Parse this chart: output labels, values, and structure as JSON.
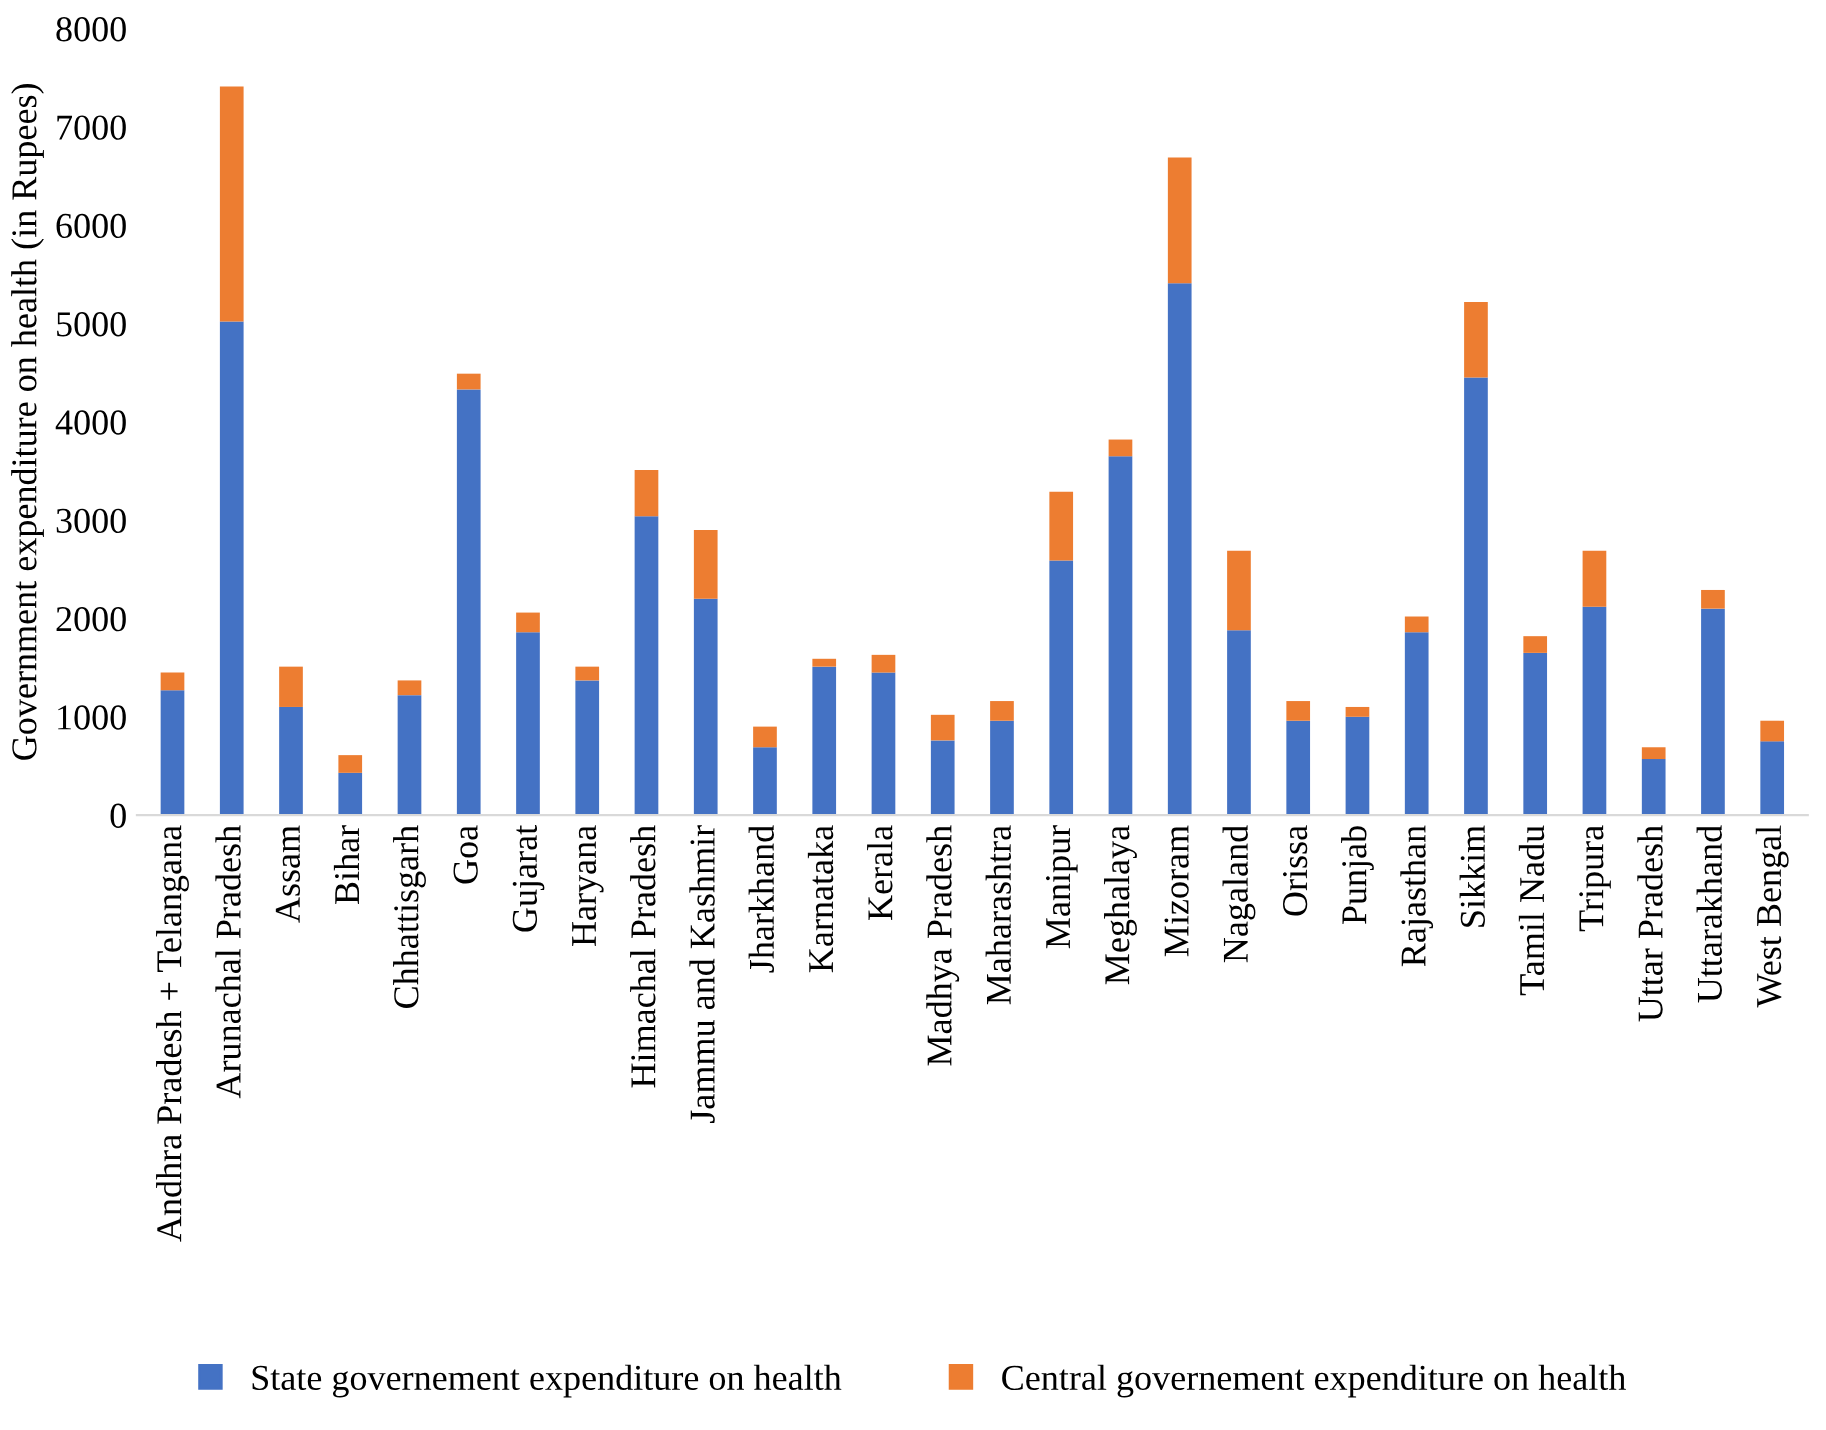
{
  "chart_data": {
    "type": "bar",
    "stacked": true,
    "ylabel": "Government expenditure on health (in Rupees)",
    "categories": [
      "Andhra Pradesh + Telangana",
      "Arunachal Pradesh",
      "Assam",
      "Bihar",
      "Chhattisgarh",
      "Goa",
      "Gujarat",
      "Haryana",
      "Himachal Pradesh",
      "Jammu and Kashmir",
      "Jharkhand",
      "Karnataka",
      "Kerala",
      "Madhya Pradesh",
      "Maharashtra",
      "Manipur",
      "Meghalaya",
      "Mizoram",
      "Nagaland",
      "Orissa",
      "Punjab",
      "Rajasthan",
      "Sikkim",
      "Tamil Nadu",
      "Tripura",
      "Uttar Pradesh",
      "Uttarakhand",
      "West Bengal"
    ],
    "series": [
      {
        "name": "State governement expenditure on health",
        "color": "#4472c4",
        "values": [
          1270,
          5020,
          1100,
          430,
          1220,
          4330,
          1860,
          1370,
          3040,
          2200,
          690,
          1510,
          1450,
          760,
          960,
          2590,
          3650,
          5410,
          1880,
          960,
          1000,
          1860,
          4450,
          1650,
          2120,
          570,
          2100,
          750
        ]
      },
      {
        "name": "Central governement expenditure on health",
        "color": "#ed7d31",
        "values": [
          180,
          2390,
          410,
          180,
          150,
          160,
          200,
          140,
          470,
          700,
          210,
          80,
          180,
          260,
          200,
          700,
          170,
          1280,
          810,
          200,
          100,
          160,
          770,
          170,
          570,
          120,
          190,
          210
        ]
      }
    ],
    "ylim": [
      0,
      8000
    ],
    "yticks": [
      0,
      1000,
      2000,
      3000,
      4000,
      5000,
      6000,
      7000,
      8000
    ],
    "grid": false,
    "legend": "bottom"
  }
}
